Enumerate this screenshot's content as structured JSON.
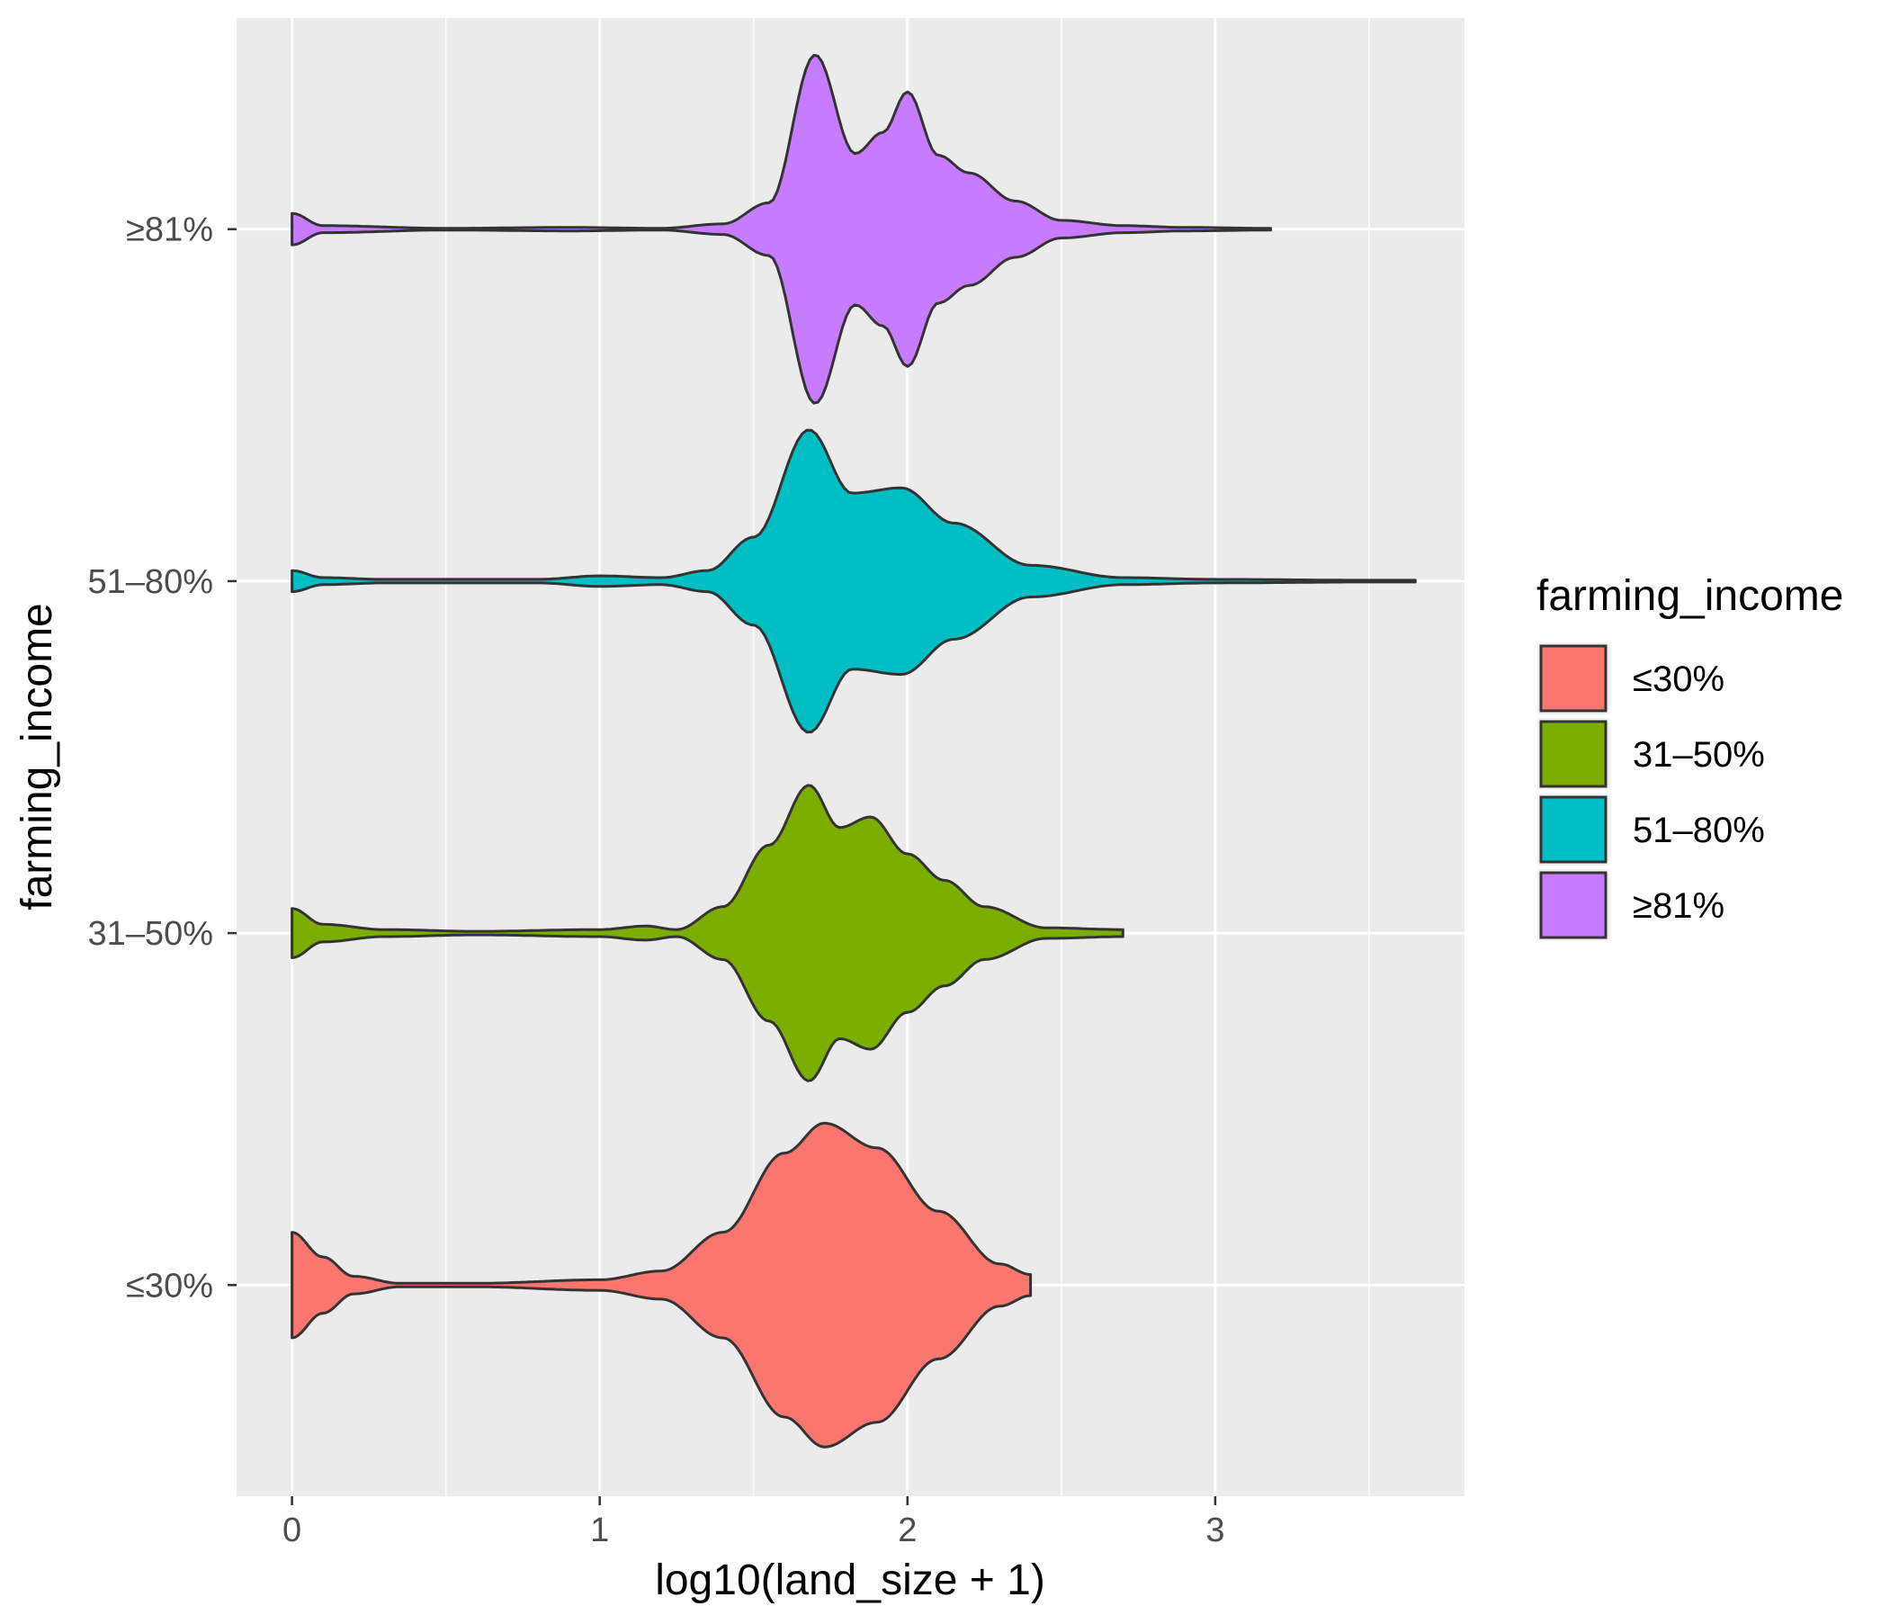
{
  "chart_data": {
    "type": "violin",
    "orientation": "horizontal",
    "title": "",
    "xlabel": "log10(land_size + 1)",
    "ylabel": "farming_income",
    "xlim": [
      -0.18,
      3.81
    ],
    "x_ticks": [
      0,
      1,
      2,
      3
    ],
    "x_tick_labels": [
      "0",
      "1",
      "2",
      "3"
    ],
    "y_categories": [
      "≤30%",
      "31–50%",
      "51–80%",
      "≥81%"
    ],
    "grid": true,
    "legend": {
      "title": "farming_income",
      "position": "right",
      "entries": [
        {
          "label": "≤30%",
          "color": "#F8766D"
        },
        {
          "label": "31–50%",
          "color": "#7CAE00"
        },
        {
          "label": "51–80%",
          "color": "#00BFC4"
        },
        {
          "label": "≥81%",
          "color": "#C77CFF"
        }
      ]
    },
    "series": [
      {
        "name": "≤30%",
        "color": "#F8766D",
        "range": [
          0,
          2.4
        ],
        "density_scale": 0.62,
        "profile": [
          [
            0,
            0.3
          ],
          [
            0.1,
            0.16
          ],
          [
            0.2,
            0.05
          ],
          [
            0.35,
            0.01
          ],
          [
            0.6,
            0.01
          ],
          [
            1.0,
            0.03
          ],
          [
            1.2,
            0.08
          ],
          [
            1.4,
            0.3
          ],
          [
            1.6,
            0.75
          ],
          [
            1.73,
            0.92
          ],
          [
            1.9,
            0.78
          ],
          [
            2.1,
            0.42
          ],
          [
            2.3,
            0.12
          ],
          [
            2.4,
            0.06
          ]
        ]
      },
      {
        "name": "31–50%",
        "color": "#7CAE00",
        "range": [
          0,
          2.7
        ],
        "density_scale": 0.62,
        "profile": [
          [
            0,
            0.14
          ],
          [
            0.1,
            0.05
          ],
          [
            0.3,
            0.02
          ],
          [
            0.6,
            0.01
          ],
          [
            1.0,
            0.02
          ],
          [
            1.15,
            0.04
          ],
          [
            1.25,
            0.02
          ],
          [
            1.4,
            0.15
          ],
          [
            1.55,
            0.5
          ],
          [
            1.68,
            0.84
          ],
          [
            1.78,
            0.6
          ],
          [
            1.88,
            0.66
          ],
          [
            2.0,
            0.45
          ],
          [
            2.12,
            0.3
          ],
          [
            2.25,
            0.15
          ],
          [
            2.45,
            0.03
          ],
          [
            2.7,
            0.02
          ]
        ]
      },
      {
        "name": "51–80%",
        "color": "#00BFC4",
        "range": [
          0,
          3.65
        ],
        "density_scale": 0.62,
        "profile": [
          [
            0,
            0.06
          ],
          [
            0.1,
            0.02
          ],
          [
            0.3,
            0.01
          ],
          [
            0.8,
            0.01
          ],
          [
            1.0,
            0.03
          ],
          [
            1.2,
            0.02
          ],
          [
            1.35,
            0.06
          ],
          [
            1.5,
            0.25
          ],
          [
            1.68,
            0.86
          ],
          [
            1.82,
            0.5
          ],
          [
            1.98,
            0.53
          ],
          [
            2.15,
            0.33
          ],
          [
            2.4,
            0.09
          ],
          [
            2.7,
            0.02
          ],
          [
            3.0,
            0.01
          ],
          [
            3.5,
            0.005
          ],
          [
            3.65,
            0.005
          ]
        ]
      },
      {
        "name": "≥81%",
        "color": "#C77CFF",
        "range": [
          0,
          3.18
        ],
        "density_scale": 0.62,
        "profile": [
          [
            0,
            0.09
          ],
          [
            0.1,
            0.02
          ],
          [
            0.5,
            0.005
          ],
          [
            0.9,
            0.01
          ],
          [
            1.2,
            0.005
          ],
          [
            1.4,
            0.03
          ],
          [
            1.55,
            0.15
          ],
          [
            1.7,
            0.99
          ],
          [
            1.83,
            0.43
          ],
          [
            1.92,
            0.55
          ],
          [
            2.0,
            0.78
          ],
          [
            2.1,
            0.42
          ],
          [
            2.2,
            0.32
          ],
          [
            2.35,
            0.16
          ],
          [
            2.5,
            0.05
          ],
          [
            2.7,
            0.02
          ],
          [
            2.9,
            0.01
          ],
          [
            3.18,
            0.005
          ]
        ]
      }
    ]
  }
}
